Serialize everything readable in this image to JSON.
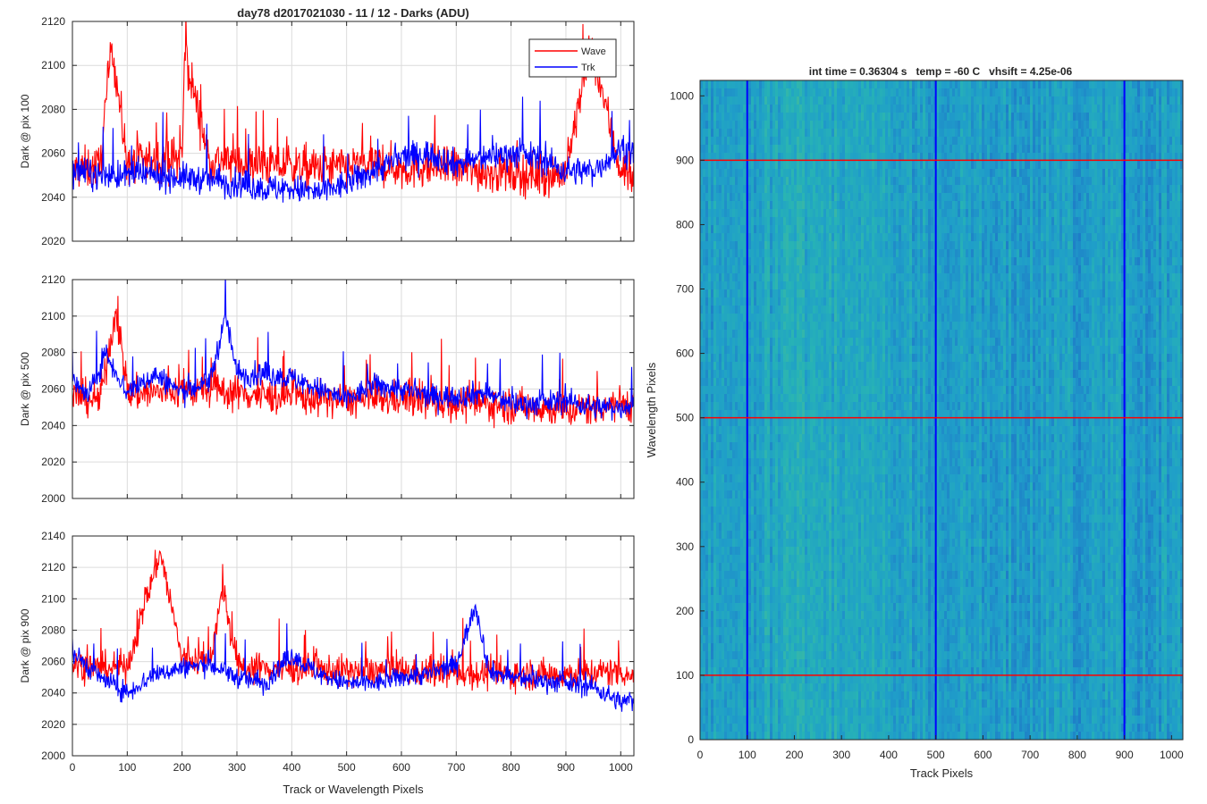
{
  "figure": {
    "title": "day78 d2017021030 - 11 / 12 - Darks (ADU)",
    "heatmap_title": "int time = 0.36304 s   temp = -60 C   vhsift = 4.25e-06"
  },
  "legend": {
    "items": [
      "Wave",
      "Trk"
    ]
  },
  "colors": {
    "wave": "#ff0000",
    "trk": "#0000ff"
  },
  "chart_data": [
    {
      "type": "line",
      "title": "day78 d2017021030 - 11 / 12 - Darks (ADU)",
      "xlabel": "",
      "ylabel": "Dark @ pix 100",
      "xlim": [
        0,
        1024
      ],
      "ylim": [
        2020,
        2120
      ],
      "xticks": [
        0,
        100,
        200,
        300,
        400,
        500,
        600,
        700,
        800,
        900,
        1000
      ],
      "xtick_labels": [],
      "yticks": [
        2020,
        2040,
        2060,
        2080,
        2100,
        2120
      ],
      "grid": true,
      "legend": "top-right",
      "series": [
        {
          "name": "Wave",
          "color": "#ff0000",
          "x": [
            0,
            50,
            72,
            100,
            150,
            200,
            205,
            250,
            300,
            350,
            400,
            450,
            500,
            550,
            600,
            650,
            700,
            750,
            800,
            850,
            900,
            945,
            1000,
            1024
          ],
          "values": [
            2052,
            2054,
            2110,
            2055,
            2057,
            2058,
            2106,
            2057,
            2056,
            2055,
            2054,
            2053,
            2054,
            2055,
            2053,
            2054,
            2053,
            2052,
            2051,
            2050,
            2051,
            2110,
            2052,
            2050
          ]
        },
        {
          "name": "Trk",
          "color": "#0000ff",
          "x": [
            0,
            50,
            100,
            150,
            200,
            250,
            300,
            350,
            400,
            450,
            500,
            550,
            600,
            650,
            700,
            750,
            800,
            850,
            900,
            950,
            1000,
            1024
          ],
          "values": [
            2052,
            2050,
            2050,
            2050,
            2049,
            2048,
            2046,
            2044,
            2044,
            2042,
            2046,
            2052,
            2058,
            2060,
            2055,
            2058,
            2060,
            2058,
            2052,
            2052,
            2062,
            2060
          ]
        }
      ]
    },
    {
      "type": "line",
      "xlabel": "",
      "ylabel": "Dark @ pix 500",
      "xlim": [
        0,
        1024
      ],
      "ylim": [
        2000,
        2120
      ],
      "xticks": [
        0,
        100,
        200,
        300,
        400,
        500,
        600,
        700,
        800,
        900,
        1000
      ],
      "xtick_labels": [],
      "yticks": [
        2000,
        2020,
        2040,
        2060,
        2080,
        2100,
        2120
      ],
      "grid": true,
      "series": [
        {
          "name": "Wave",
          "color": "#ff0000",
          "x": [
            0,
            50,
            80,
            100,
            150,
            200,
            250,
            300,
            350,
            400,
            450,
            500,
            550,
            600,
            650,
            700,
            750,
            800,
            850,
            900,
            950,
            1000,
            1024
          ],
          "values": [
            2056,
            2054,
            2104,
            2057,
            2058,
            2059,
            2060,
            2058,
            2056,
            2056,
            2055,
            2054,
            2054,
            2055,
            2053,
            2052,
            2052,
            2051,
            2050,
            2048,
            2050,
            2052,
            2052
          ]
        },
        {
          "name": "Trk",
          "color": "#0000ff",
          "x": [
            0,
            30,
            60,
            100,
            150,
            200,
            250,
            280,
            300,
            350,
            400,
            450,
            500,
            550,
            600,
            650,
            700,
            750,
            800,
            850,
            900,
            950,
            1000,
            1024
          ],
          "values": [
            2064,
            2056,
            2080,
            2058,
            2068,
            2058,
            2064,
            2100,
            2068,
            2068,
            2066,
            2060,
            2054,
            2062,
            2060,
            2056,
            2056,
            2058,
            2052,
            2052,
            2054,
            2050,
            2050,
            2052
          ]
        }
      ]
    },
    {
      "type": "line",
      "xlabel": "Track or Wavelength Pixels",
      "ylabel": "Dark @ pix 900",
      "xlim": [
        0,
        1024
      ],
      "ylim": [
        2000,
        2140
      ],
      "xticks": [
        0,
        100,
        200,
        300,
        400,
        500,
        600,
        700,
        800,
        900,
        1000
      ],
      "xtick_labels": [
        "0",
        "100",
        "200",
        "300",
        "400",
        "500",
        "600",
        "700",
        "800",
        "900",
        "1000"
      ],
      "yticks": [
        2000,
        2020,
        2040,
        2060,
        2080,
        2100,
        2120,
        2140
      ],
      "grid": true,
      "series": [
        {
          "name": "Wave",
          "color": "#ff0000",
          "x": [
            0,
            50,
            100,
            160,
            200,
            250,
            275,
            300,
            350,
            400,
            450,
            500,
            550,
            600,
            650,
            700,
            750,
            800,
            850,
            900,
            950,
            1000,
            1024
          ],
          "values": [
            2058,
            2056,
            2057,
            2130,
            2062,
            2060,
            2106,
            2057,
            2056,
            2055,
            2055,
            2054,
            2054,
            2054,
            2053,
            2053,
            2052,
            2052,
            2052,
            2052,
            2053,
            2054,
            2050
          ]
        },
        {
          "name": "Trk",
          "color": "#0000ff",
          "x": [
            0,
            50,
            100,
            150,
            200,
            250,
            300,
            350,
            400,
            450,
            500,
            550,
            600,
            650,
            700,
            735,
            760,
            800,
            850,
            900,
            950,
            1000,
            1024
          ],
          "values": [
            2066,
            2050,
            2040,
            2052,
            2056,
            2058,
            2050,
            2046,
            2064,
            2052,
            2046,
            2046,
            2050,
            2052,
            2058,
            2096,
            2054,
            2050,
            2048,
            2046,
            2044,
            2034,
            2036
          ]
        }
      ]
    },
    {
      "type": "heatmap",
      "title": "int time = 0.36304 s   temp = -60 C   vhsift = 4.25e-06",
      "xlabel": "Track Pixels",
      "ylabel": "Wavelength Pixels",
      "xlim": [
        0,
        1024
      ],
      "ylim": [
        0,
        1024
      ],
      "xticks": [
        0,
        100,
        200,
        300,
        400,
        500,
        600,
        700,
        800,
        900,
        1000
      ],
      "yticks": [
        0,
        100,
        200,
        300,
        400,
        500,
        600,
        700,
        800,
        900,
        1000
      ],
      "vertical_lines": {
        "x": [
          100,
          500,
          900
        ],
        "color": "#0000ff"
      },
      "horizontal_lines": {
        "y": [
          100,
          500,
          900
        ],
        "color": "#ff0000"
      },
      "colormap": [
        "#1e78c8",
        "#1f9ec9",
        "#27b3b5",
        "#4cbc94"
      ]
    }
  ]
}
